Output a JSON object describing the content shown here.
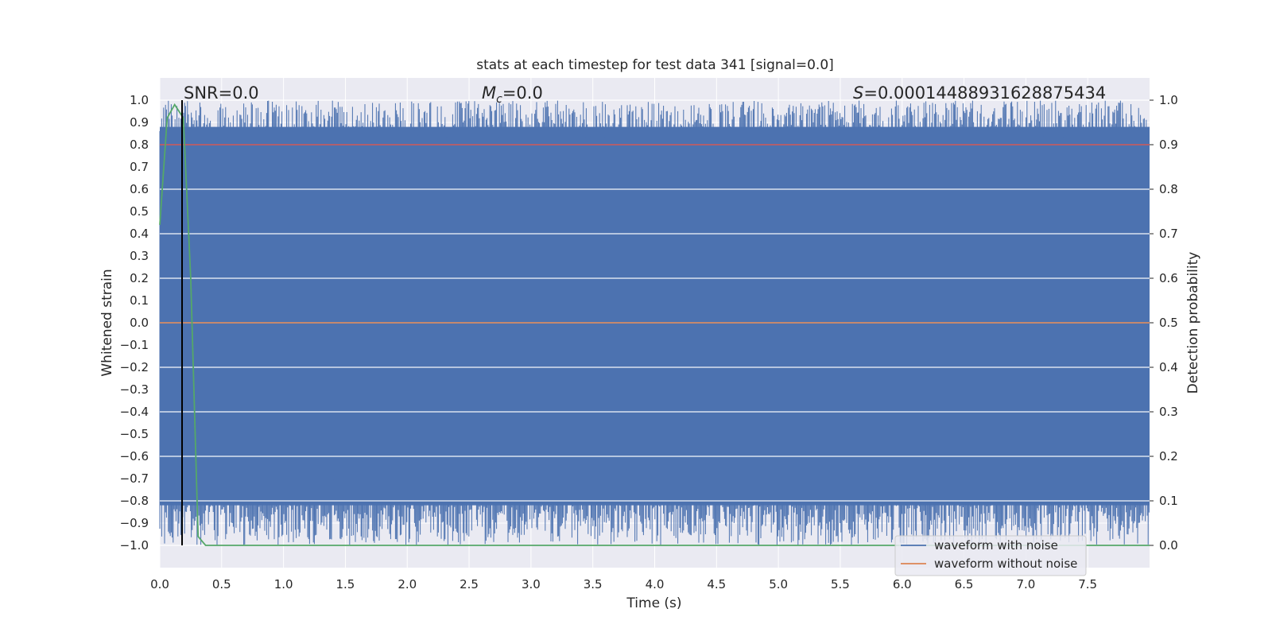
{
  "chart_data": {
    "type": "line",
    "title": "stats at each timestep for test data 341 [signal=0.0]",
    "xlabel": "Time (s)",
    "ylabel": "Whitened strain",
    "ylabel_right": "Detection probability",
    "xlim": [
      0.0,
      8.0
    ],
    "ylim": [
      -1.1,
      1.1
    ],
    "ylim_right": [
      -0.05,
      1.05
    ],
    "xticks": [
      "0.0",
      "0.5",
      "1.0",
      "1.5",
      "2.0",
      "2.5",
      "3.0",
      "3.5",
      "4.0",
      "4.5",
      "5.0",
      "5.5",
      "6.0",
      "6.5",
      "7.0",
      "7.5"
    ],
    "yticks": [
      "1.0",
      "0.9",
      "0.8",
      "0.7",
      "0.6",
      "0.5",
      "0.4",
      "0.3",
      "0.2",
      "0.1",
      "0.0",
      "−0.1",
      "−0.2",
      "−0.3",
      "−0.4",
      "−0.5",
      "−0.6",
      "−0.7",
      "−0.8",
      "−0.9",
      "−1.0"
    ],
    "yticks_right": [
      "1.0",
      "0.9",
      "0.8",
      "0.7",
      "0.6",
      "0.5",
      "0.4",
      "0.3",
      "0.2",
      "0.1",
      "0.0"
    ],
    "grid": true,
    "legend_position": "lower-right",
    "annotations": {
      "snr": "SNR=0.0",
      "mc_symbol": "M",
      "mc_sub": "c",
      "mc_value": "=0.0",
      "s_symbol": "S",
      "s_value": "=0.00014488931628875434"
    },
    "series": [
      {
        "name": "waveform with noise",
        "color": "#4c72b0",
        "description_values": "dense noise filling roughly -1.0 to 1.0 over the full 0-8 s range"
      },
      {
        "name": "waveform without noise",
        "color": "#dd8452",
        "x": [
          0.0,
          8.0
        ],
        "y": [
          0.0,
          0.0
        ]
      },
      {
        "axis": "right",
        "color": "#55a868",
        "x": [
          0.0,
          0.06,
          0.12,
          0.19,
          0.25,
          0.31,
          0.37,
          8.0
        ],
        "y": [
          0.72,
          0.96,
          0.99,
          0.96,
          0.6,
          0.02,
          0.0,
          0.0
        ]
      },
      {
        "axis": "right",
        "color": "#c44e52",
        "x": [
          0.0,
          8.0
        ],
        "y": [
          0.9,
          0.9
        ]
      }
    ],
    "vertical_marker": {
      "color": "#000000",
      "x": 0.18
    }
  }
}
